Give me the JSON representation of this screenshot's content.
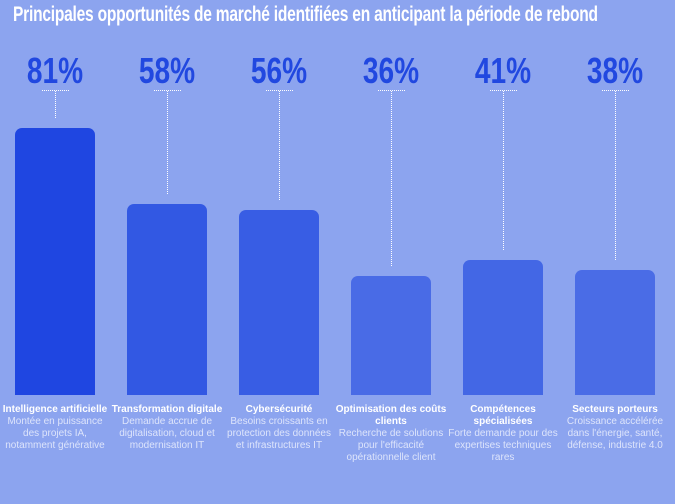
{
  "chart_data": {
    "type": "bar",
    "title": "Principales opportunités de marché identifiées en anticipant la période de rebond",
    "categories": [
      "Intelligence artificielle",
      "Transformation digitale",
      "Cybersécurité",
      "Optimisation des coûts clients",
      "Compétences spécialisées",
      "Secteurs porteurs"
    ],
    "values": [
      81,
      58,
      56,
      36,
      41,
      38
    ],
    "value_labels": [
      "81%",
      "58%",
      "56%",
      "36%",
      "41%",
      "38%"
    ],
    "descriptions": [
      "Montée en puissance des projets IA, notamment générative",
      "Demande accrue de digitalisation, cloud et modernisation IT",
      "Besoins croissants en protection des données et infrastructures IT",
      "Recherche de solutions pour l'efficacité opérationnelle client",
      "Forte demande pour des expertises techniques rares",
      "Croissance accélérée dans l'énergie, santé, défense, industrie 4.0"
    ],
    "bar_colors": [
      "#1f46e1",
      "#3258e3",
      "#385de4",
      "#496be6",
      "#4367e5",
      "#4a6ce6"
    ],
    "label_color": "#2148e0",
    "xlabel": "",
    "ylabel": "",
    "ylim": [
      0,
      100
    ],
    "grid": false,
    "legend": "none"
  }
}
